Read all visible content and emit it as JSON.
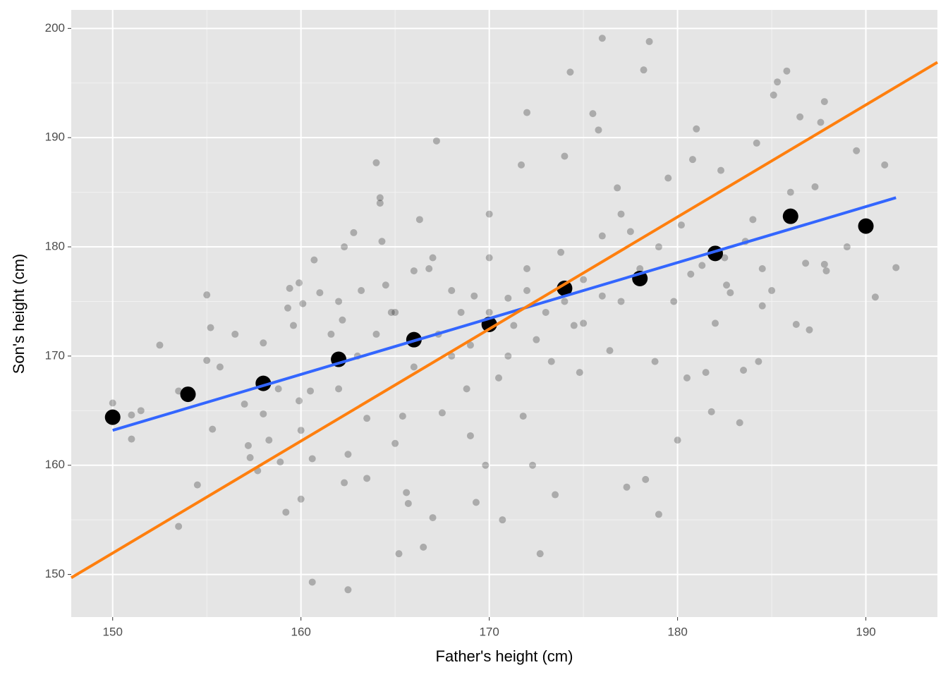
{
  "chart_data": {
    "type": "scatter",
    "x_label": "Father's height (cm)",
    "y_label": "Son's height (cm)",
    "xlim": [
      147.8,
      193.8
    ],
    "ylim": [
      146.1,
      201.7
    ],
    "xticks": [
      150,
      160,
      170,
      180,
      190
    ],
    "yticks": [
      150,
      160,
      170,
      180,
      190,
      200
    ],
    "x_minor_grid": [
      155,
      165,
      175,
      185
    ],
    "y_minor_grid": [
      155,
      165,
      175,
      185,
      195
    ],
    "grid": true,
    "series": [
      {
        "type": "scatter",
        "color": "#000000",
        "opacity": 0.25,
        "size": 5,
        "x": [
          150,
          151,
          151.5,
          151,
          152.5,
          153.5,
          153.5,
          154.5,
          155,
          155.2,
          155,
          155.3,
          155.7,
          156.5,
          157,
          157.2,
          157.3,
          157.7,
          158,
          158,
          158.3,
          158.8,
          158.9,
          159.2,
          159.3,
          159.4,
          159.6,
          159.9,
          159.9,
          160,
          160,
          160.1,
          160.5,
          160.6,
          160.6,
          160.7,
          161,
          161.6,
          162,
          162.2,
          162.3,
          162.5,
          162.5,
          162.3,
          162.8,
          163.2,
          163.5,
          163.5,
          164,
          164.2,
          164.2,
          164.3,
          164.5,
          164.8,
          165,
          165.2,
          165.4,
          165.6,
          165.7,
          166,
          166.3,
          166.5,
          166.8,
          167,
          167.2,
          167.3,
          167.5,
          168,
          168.5,
          168.8,
          169,
          169.2,
          169.3,
          169.8,
          170,
          170,
          170.5,
          170.7,
          171,
          171.3,
          171.7,
          171.8,
          172,
          172,
          172.3,
          172.5,
          172.7,
          173.3,
          173.5,
          173.8,
          174,
          174.3,
          174.5,
          174.8,
          175,
          175.5,
          175.8,
          176,
          176,
          176.4,
          176.8,
          177,
          177.3,
          177.5,
          178,
          178.2,
          178.3,
          178.5,
          178.8,
          179,
          179.5,
          179.8,
          180,
          180.2,
          180.5,
          180.8,
          181,
          181.3,
          181.5,
          181.8,
          182,
          182.3,
          182.5,
          182.8,
          183.3,
          183.5,
          184,
          184.2,
          184.3,
          184.5,
          185,
          185.1,
          185.3,
          185.8,
          186,
          186.3,
          186.5,
          186.8,
          187,
          187.3,
          187.6,
          187.8,
          187.8,
          187.9,
          189,
          189.5,
          190.2,
          190.5,
          191,
          191.6,
          183.6,
          184.5,
          182.6,
          180.7,
          179,
          177,
          176,
          175,
          174,
          173,
          172,
          171,
          170,
          169,
          168,
          167,
          166,
          165,
          164,
          163,
          162
        ],
        "values": [
          165.7,
          164.6,
          165,
          162.4,
          171,
          166.8,
          154.4,
          158.2,
          175.6,
          172.6,
          169.6,
          163.3,
          169,
          172,
          165.6,
          161.8,
          160.7,
          159.5,
          171.2,
          164.7,
          162.3,
          167,
          160.3,
          155.7,
          174.4,
          176.2,
          172.8,
          176.7,
          165.9,
          163.2,
          156.9,
          174.8,
          166.8,
          160.6,
          149.3,
          178.8,
          175.8,
          172,
          167,
          173.3,
          158.4,
          148.6,
          161,
          180,
          181.3,
          176,
          164.3,
          158.8,
          187.7,
          184.5,
          184,
          180.5,
          176.5,
          174,
          162,
          151.9,
          164.5,
          157.5,
          156.5,
          177.8,
          182.5,
          152.5,
          178,
          155.2,
          189.7,
          172,
          164.8,
          170,
          174,
          167,
          162.7,
          175.5,
          156.6,
          160,
          183,
          179,
          168,
          155,
          175.3,
          172.8,
          187.5,
          164.5,
          192.3,
          176,
          160,
          171.5,
          151.9,
          169.5,
          157.3,
          179.5,
          188.3,
          196,
          172.8,
          168.5,
          173,
          192.2,
          190.7,
          199.1,
          175.5,
          170.5,
          185.4,
          175,
          158,
          181.4,
          178,
          196.2,
          158.7,
          198.8,
          169.5,
          155.5,
          186.3,
          175,
          162.3,
          182,
          168,
          188,
          190.8,
          178.3,
          168.5,
          164.9,
          173,
          187,
          179,
          175.8,
          163.9,
          168.7,
          182.5,
          189.5,
          169.5,
          174.6,
          176,
          193.9,
          195.1,
          196.1,
          185,
          172.9,
          191.9,
          178.5,
          172.4,
          185.5,
          191.4,
          193.3,
          178.4,
          177.8,
          180,
          188.8,
          182,
          175.4,
          187.5,
          178.1,
          180.5,
          178,
          176.5,
          177.5,
          180,
          183,
          181,
          177,
          175,
          174,
          178,
          170,
          174,
          171,
          176,
          179,
          169,
          174,
          172,
          170,
          175
        ]
      },
      {
        "type": "scatter",
        "color": "#000000",
        "opacity": 1,
        "size": 11,
        "x": [
          150,
          154,
          158,
          162,
          166,
          170,
          174,
          178,
          182,
          186,
          190
        ],
        "values": [
          164.4,
          166.5,
          167.5,
          169.7,
          171.5,
          172.9,
          176.2,
          177.1,
          179.4,
          182.8,
          181.9
        ]
      },
      {
        "type": "line",
        "color": "#3366ff",
        "x": [
          150,
          191.6
        ],
        "values": [
          163.2,
          184.5
        ]
      },
      {
        "type": "line",
        "color": "#ff7f0e",
        "x": [
          147.8,
          193.8
        ],
        "values": [
          149.7,
          196.9
        ]
      }
    ]
  }
}
